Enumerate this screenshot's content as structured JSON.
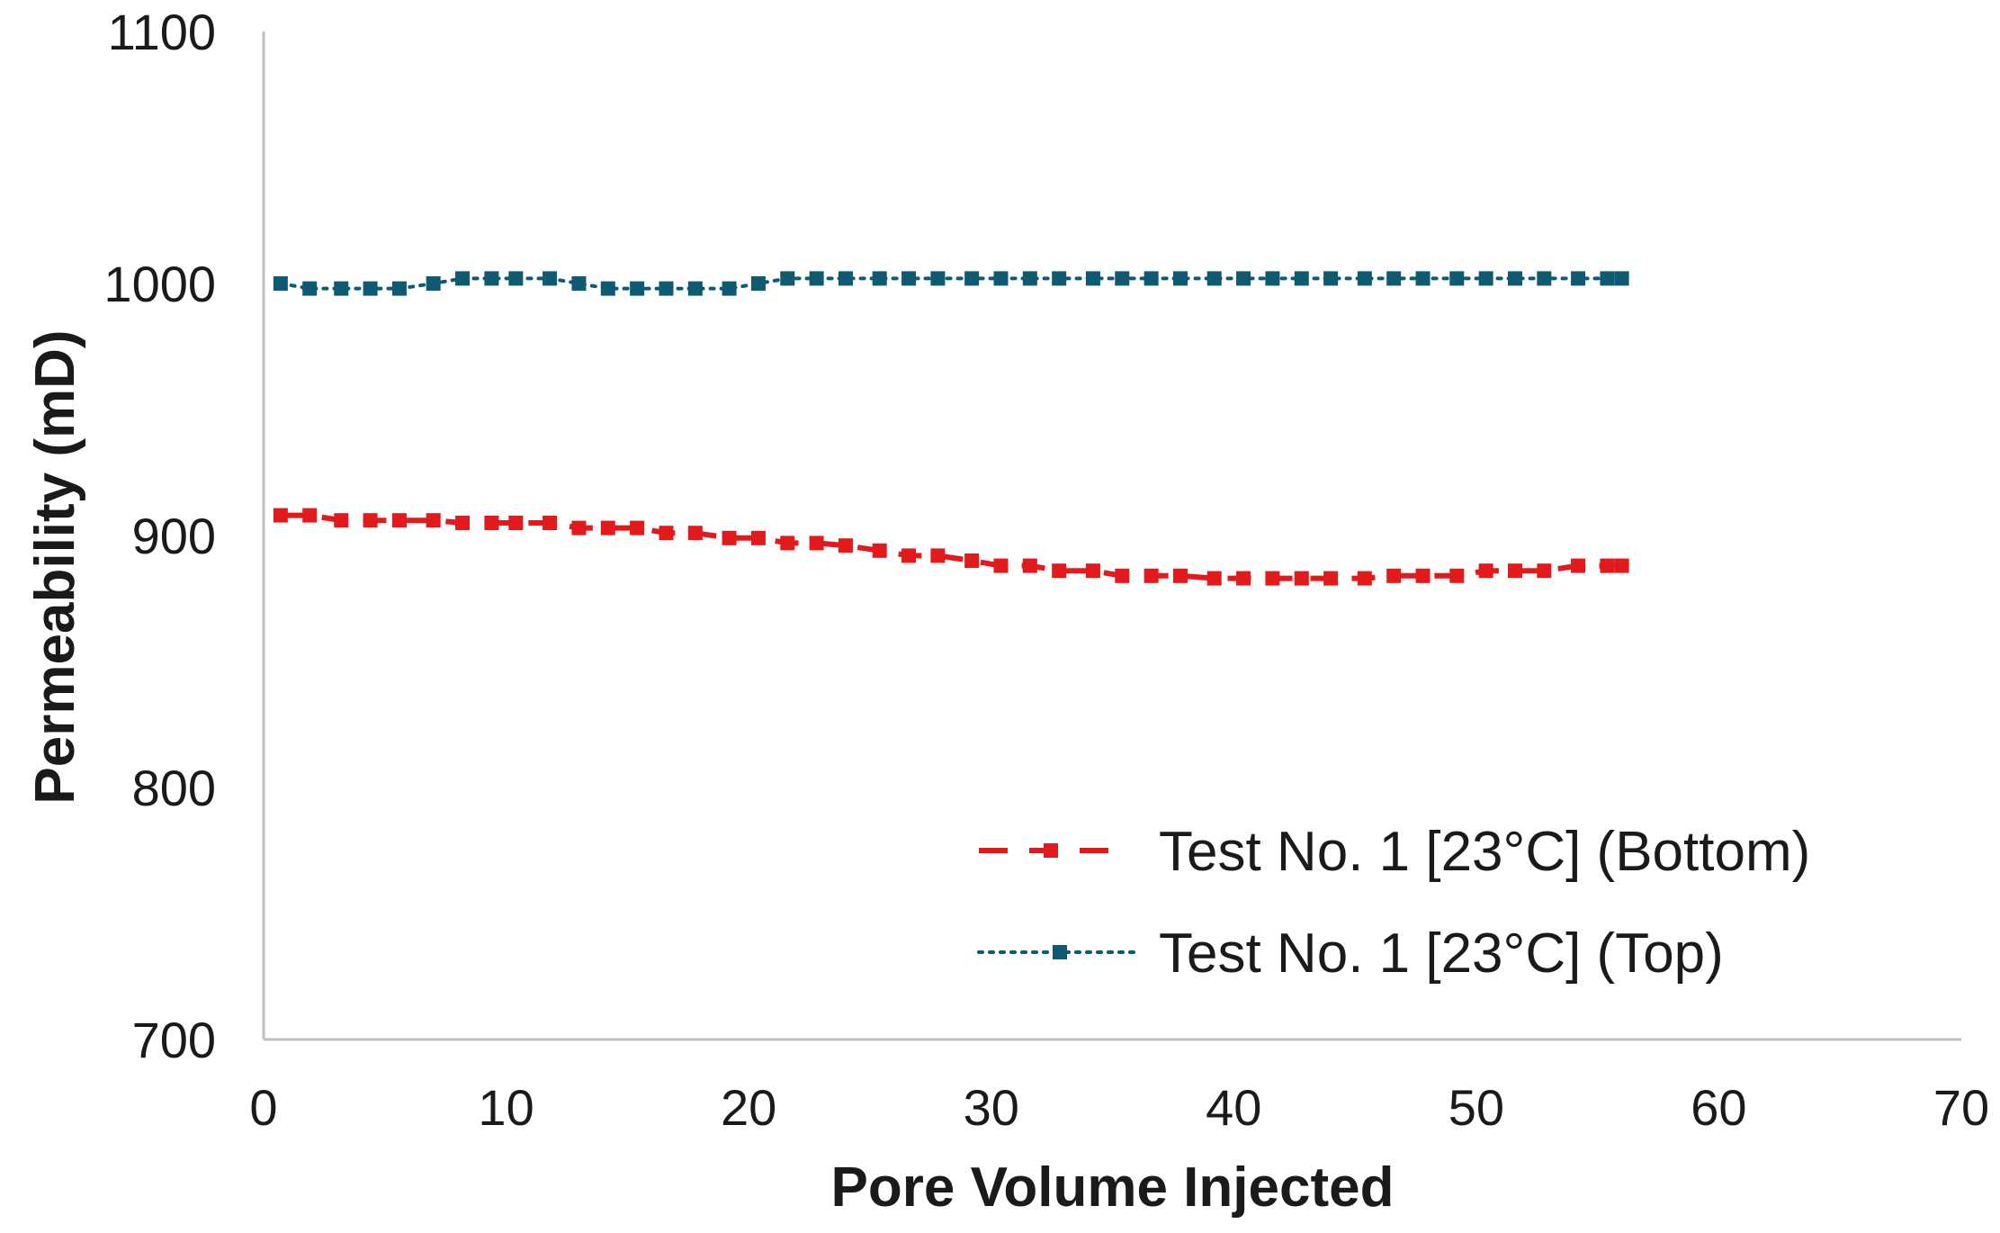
{
  "chart_data": {
    "type": "line",
    "title": "",
    "xlabel": "Pore Volume Injected",
    "ylabel": "Permeability (mD)",
    "xlim": [
      0,
      70
    ],
    "ylim": [
      700,
      1100
    ],
    "xticks": [
      0,
      10,
      20,
      30,
      40,
      50,
      60,
      70
    ],
    "yticks": [
      700,
      800,
      900,
      1000,
      1100
    ],
    "grid": false,
    "legend_position": "bottom-right",
    "series": [
      {
        "name": "Test No. 1 [23°C] (Bottom)",
        "color": "#e31a1c",
        "line_style": "dashed",
        "marker": "square",
        "x": [
          0.7,
          1.9,
          3.2,
          4.4,
          5.6,
          7.0,
          8.2,
          9.4,
          10.4,
          11.8,
          13.0,
          14.2,
          15.4,
          16.6,
          17.8,
          19.2,
          20.4,
          21.6,
          22.8,
          24.0,
          25.4,
          26.6,
          27.8,
          29.2,
          30.4,
          31.6,
          32.8,
          34.2,
          35.4,
          36.6,
          37.8,
          39.2,
          40.4,
          41.6,
          42.8,
          44.0,
          45.4,
          46.6,
          47.8,
          49.2,
          50.4,
          51.6,
          52.8,
          54.2,
          55.4,
          56.0
        ],
        "y": [
          908,
          908,
          906,
          906,
          906,
          906,
          905,
          905,
          905,
          905,
          903,
          903,
          903,
          901,
          901,
          899,
          899,
          897,
          897,
          896,
          894,
          892,
          892,
          890,
          888,
          888,
          886,
          886,
          884,
          884,
          884,
          883,
          883,
          883,
          883,
          883,
          883,
          884,
          884,
          884,
          886,
          886,
          886,
          888,
          888,
          888
        ]
      },
      {
        "name": "Test No. 1 [23°C] (Top)",
        "color": "#0e5a73",
        "line_style": "dotted",
        "marker": "square",
        "x": [
          0.7,
          1.9,
          3.2,
          4.4,
          5.6,
          7.0,
          8.2,
          9.4,
          10.4,
          11.8,
          13.0,
          14.2,
          15.4,
          16.6,
          17.8,
          19.2,
          20.4,
          21.6,
          22.8,
          24.0,
          25.4,
          26.6,
          27.8,
          29.2,
          30.4,
          31.6,
          32.8,
          34.2,
          35.4,
          36.6,
          37.8,
          39.2,
          40.4,
          41.6,
          42.8,
          44.0,
          45.4,
          46.6,
          47.8,
          49.2,
          50.4,
          51.6,
          52.8,
          54.2,
          55.4,
          56.0
        ],
        "y": [
          1000,
          998,
          998,
          998,
          998,
          1000,
          1002,
          1002,
          1002,
          1002,
          1000,
          998,
          998,
          998,
          998,
          998,
          1000,
          1002,
          1002,
          1002,
          1002,
          1002,
          1002,
          1002,
          1002,
          1002,
          1002,
          1002,
          1002,
          1002,
          1002,
          1002,
          1002,
          1002,
          1002,
          1002,
          1002,
          1002,
          1002,
          1002,
          1002,
          1002,
          1002,
          1002,
          1002,
          1002
        ]
      }
    ]
  }
}
